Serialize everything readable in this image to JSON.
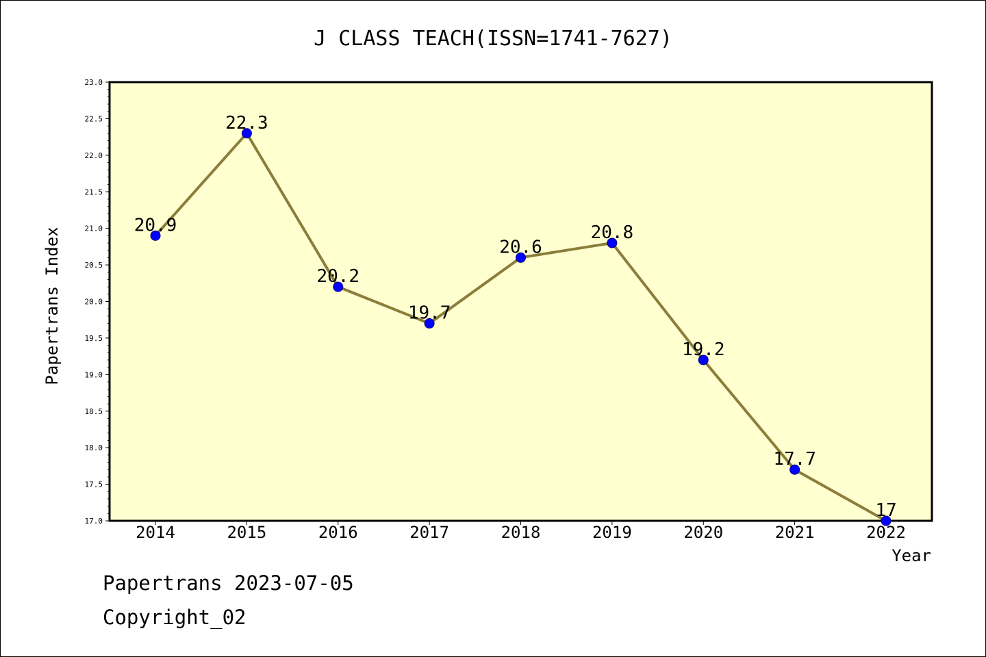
{
  "chart_data": {
    "type": "line",
    "title": "J CLASS TEACH(ISSN=1741-7627)",
    "xlabel": "Year",
    "ylabel": "Papertrans Index",
    "categories": [
      "2014",
      "2015",
      "2016",
      "2017",
      "2018",
      "2019",
      "2020",
      "2021",
      "2022"
    ],
    "series": [
      {
        "values": [
          20.9,
          22.3,
          20.2,
          19.7,
          20.6,
          20.8,
          19.2,
          17.7,
          17
        ]
      }
    ],
    "data_labels": [
      "20.9",
      "22.3",
      "20.2",
      "19.7",
      "20.6",
      "20.8",
      "19.2",
      "17.7",
      "17"
    ],
    "ylim": [
      17.0,
      23.0
    ],
    "yticks": [
      "17.0",
      "17.5",
      "18.0",
      "18.5",
      "19.0",
      "19.5",
      "20.0",
      "20.5",
      "21.0",
      "21.5",
      "22.0",
      "22.5",
      "23.0"
    ],
    "grid": false,
    "legend": "none",
    "colors": {
      "plot_background": "#ffffd0",
      "line": "#8b7d3a",
      "marker_fill": "#0000ff",
      "marker_edge": "#000080",
      "axes": "#000000"
    }
  },
  "footer": {
    "line1": "Papertrans 2023-07-05",
    "line2": "Copyright_02"
  }
}
